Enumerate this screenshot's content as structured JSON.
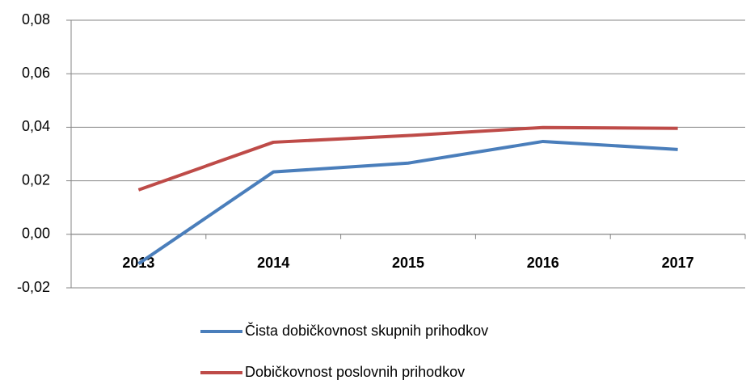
{
  "chart_data": {
    "type": "line",
    "categories": [
      "2013",
      "2014",
      "2015",
      "2016",
      "2017"
    ],
    "series": [
      {
        "name": "Čista dobičkovnost skupnih prihodkov",
        "color": "#4a7ebb",
        "values": [
          -0.011,
          0.0233,
          0.0266,
          0.0347,
          0.0317
        ]
      },
      {
        "name": "Dobičkovnost poslovnih prihodkov",
        "color": "#be4b48",
        "values": [
          0.0166,
          0.0344,
          0.0369,
          0.0399,
          0.0396
        ]
      }
    ],
    "ylim": [
      -0.02,
      0.08
    ],
    "yticks": [
      {
        "value": -0.02,
        "label": "-0,02"
      },
      {
        "value": 0,
        "label": "0,00"
      },
      {
        "value": 0.02,
        "label": "0,02"
      },
      {
        "value": 0.04,
        "label": "0,04"
      },
      {
        "value": 0.06,
        "label": "0,06"
      },
      {
        "value": 0.08,
        "label": "0,08"
      }
    ],
    "grid": true,
    "legend": "bottom"
  }
}
